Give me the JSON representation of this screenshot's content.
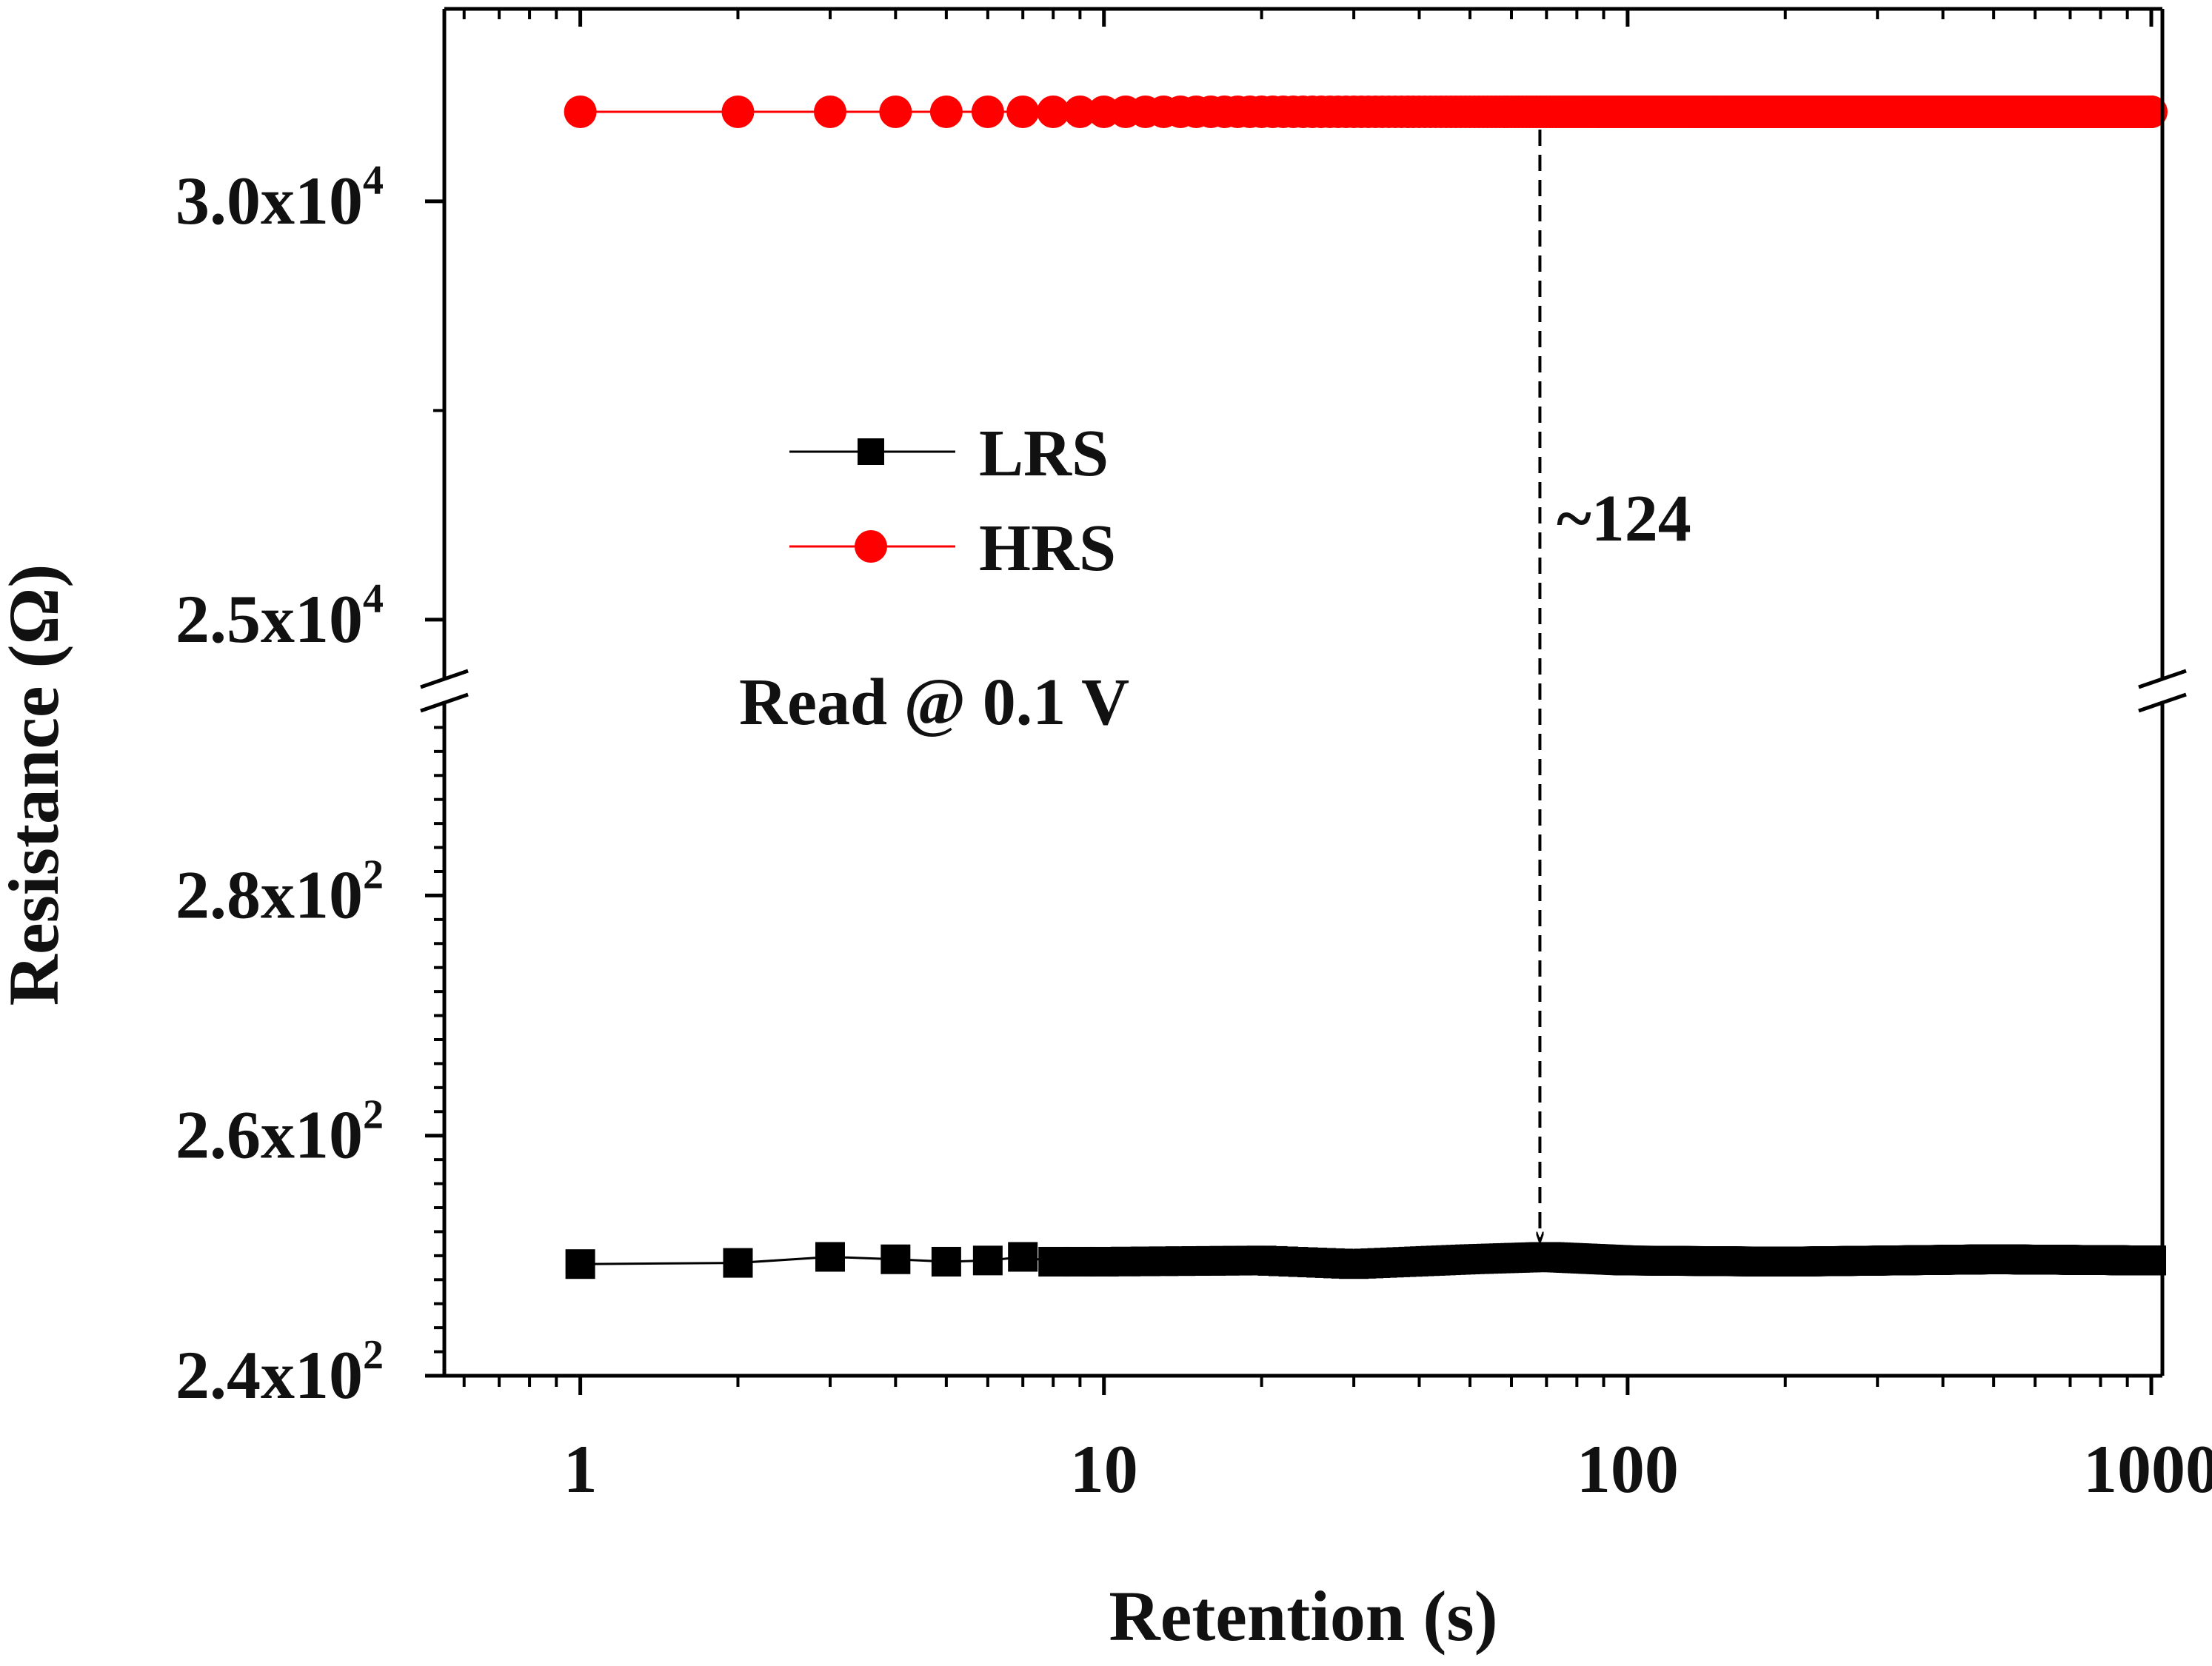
{
  "chart_data": {
    "type": "scatter",
    "title": "",
    "xlabel": "Retention (s)",
    "ylabel": "Resistance (Ω)",
    "x_scale": "log",
    "xlim": [
      0.55,
      1050
    ],
    "x_ticks": [
      {
        "value": 1,
        "label": "1"
      },
      {
        "value": 10,
        "label": "10"
      },
      {
        "value": 100,
        "label": "100"
      },
      {
        "value": 1000,
        "label": "1000"
      }
    ],
    "y_axis_break": true,
    "y_upper": {
      "range": [
        24300,
        32300
      ],
      "ticks": [
        {
          "value": 25000,
          "mantissa": "2.5x10",
          "exponent": "4"
        },
        {
          "value": 30000,
          "mantissa": "3.0x10",
          "exponent": "4"
        }
      ]
    },
    "y_lower": {
      "range": [
        240,
        296
      ],
      "ticks": [
        {
          "value": 240,
          "mantissa": "2.4x10",
          "exponent": "2"
        },
        {
          "value": 260,
          "mantissa": "2.6x10",
          "exponent": "2"
        },
        {
          "value": 280,
          "mantissa": "2.8x10",
          "exponent": "2"
        }
      ]
    },
    "series": [
      {
        "name": "HRS",
        "color": "#ff0000",
        "marker": "circle",
        "panel": "upper",
        "x": [
          1,
          2,
          3,
          4,
          5,
          6,
          7,
          8,
          9,
          10,
          20,
          50,
          100,
          200,
          500,
          1000
        ],
        "y": [
          31070,
          31070,
          31070,
          31070,
          31070,
          31070,
          31070,
          31070,
          31070,
          31070,
          31070,
          31070,
          31070,
          31070,
          31070,
          31070
        ]
      },
      {
        "name": "LRS",
        "color": "#000000",
        "marker": "square",
        "panel": "lower",
        "x": [
          1,
          2,
          3,
          4,
          5,
          6,
          7,
          8,
          10,
          20,
          30,
          50,
          70,
          100,
          200,
          500,
          1000
        ],
        "y": [
          249.3,
          249.4,
          249.9,
          249.7,
          249.5,
          249.6,
          249.9,
          249.5,
          249.5,
          249.6,
          249.3,
          249.7,
          249.9,
          249.6,
          249.5,
          249.7,
          249.6
        ]
      }
    ],
    "legend": {
      "placement": "upper-left-middle",
      "entries": [
        "LRS",
        "HRS"
      ]
    },
    "annotations": [
      {
        "text": "~124",
        "type": "dashed-arrow",
        "x": 68,
        "from_series": "HRS",
        "to_series": "LRS"
      },
      {
        "text": "Read @ 0.1 V",
        "type": "label"
      }
    ],
    "grid": false
  }
}
